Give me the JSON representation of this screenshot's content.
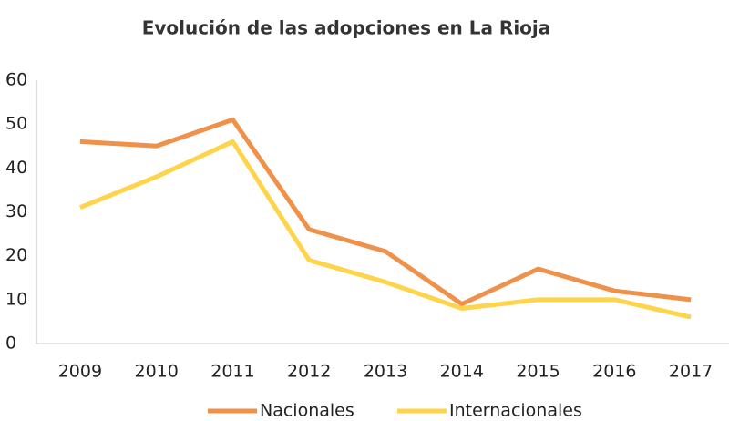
{
  "chart_data": {
    "type": "line",
    "title": "Evolución de las adopciones en La Rioja",
    "categories": [
      "2009",
      "2010",
      "2011",
      "2012",
      "2013",
      "2014",
      "2015",
      "2016",
      "2017"
    ],
    "series": [
      {
        "name": "Nacionales",
        "color": "#f0914a",
        "values": [
          46,
          45,
          51,
          26,
          21,
          9,
          17,
          12,
          10
        ]
      },
      {
        "name": "Internacionales",
        "color": "#fdd44a",
        "values": [
          31,
          38,
          46,
          19,
          14,
          8,
          10,
          10,
          6
        ]
      }
    ],
    "ylim": [
      0,
      60
    ],
    "yticks": [
      0,
      10,
      20,
      30,
      40,
      50,
      60
    ],
    "grid": false,
    "legend": "bottom"
  }
}
